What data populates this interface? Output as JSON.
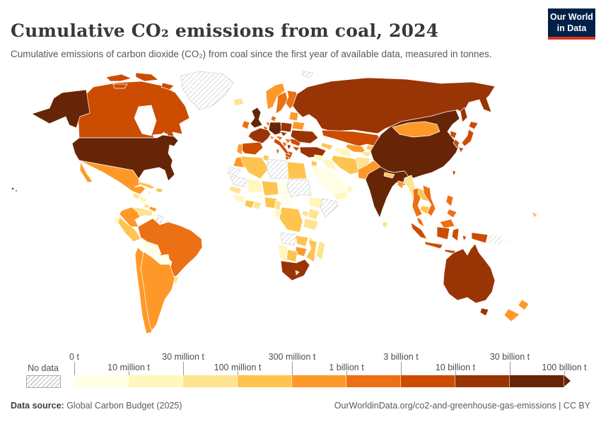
{
  "header": {
    "title": "Cumulative CO₂ emissions from coal, 2024",
    "subtitle": "Cumulative emissions of carbon dioxide (CO₂) from coal since the first year of available data, measured in tonnes.",
    "logo": {
      "line1": "Our World",
      "line2": "in Data",
      "bg_color": "#002147",
      "accent_color": "#d8331f"
    }
  },
  "footer": {
    "source_label": "Data source:",
    "source_value": " Global Carbon Budget (2025)",
    "link_text": "OurWorldinData.org/co2-and-greenhouse-gas-emissions | CC BY"
  },
  "chart_data": {
    "type": "choropleth",
    "title": "Cumulative CO₂ emissions from coal, 2024",
    "unit": "tonnes",
    "year": "2024",
    "legend": {
      "no_data_label": "No data",
      "thresholds": [
        "0 t",
        "10 million t",
        "30 million t",
        "100 million t",
        "300 million t",
        "1 billion t",
        "3 billion t",
        "10 billion t",
        "30 billion t",
        "100 billion t"
      ],
      "bin_colors": [
        "#ffffe5",
        "#fff7bc",
        "#fee391",
        "#fec44f",
        "#fe9929",
        "#ec7014",
        "#cc4c02",
        "#993404",
        "#662506"
      ],
      "no_data_style": "gray-diagonal-hatch"
    },
    "countries": [
      {
        "id": "usa",
        "name": "United States",
        "bin": 8
      },
      {
        "id": "uk",
        "name": "United Kingdom",
        "bin": 8
      },
      {
        "id": "germany",
        "name": "Germany",
        "bin": 8
      },
      {
        "id": "china",
        "name": "China",
        "bin": 8
      },
      {
        "id": "india",
        "name": "India",
        "bin": 8
      },
      {
        "id": "russia",
        "name": "Russia",
        "bin": 7
      },
      {
        "id": "france",
        "name": "France",
        "bin": 7
      },
      {
        "id": "poland",
        "name": "Poland",
        "bin": 7
      },
      {
        "id": "czechia",
        "name": "Czechia",
        "bin": 7
      },
      {
        "id": "ukraine",
        "name": "Ukraine",
        "bin": 7
      },
      {
        "id": "turkey",
        "name": "Turkey",
        "bin": 7
      },
      {
        "id": "australia",
        "name": "Australia",
        "bin": 7
      },
      {
        "id": "south-africa",
        "name": "South Africa",
        "bin": 7
      },
      {
        "id": "serbia",
        "name": "Serbia",
        "bin": 7
      },
      {
        "id": "canada",
        "name": "Canada",
        "bin": 6
      },
      {
        "id": "spain",
        "name": "Spain",
        "bin": 6
      },
      {
        "id": "italy",
        "name": "Italy",
        "bin": 6
      },
      {
        "id": "belgium",
        "name": "Belgium",
        "bin": 6
      },
      {
        "id": "romania",
        "name": "Romania",
        "bin": 6
      },
      {
        "id": "bulgaria",
        "name": "Bulgaria",
        "bin": 6
      },
      {
        "id": "greece",
        "name": "Greece",
        "bin": 6
      },
      {
        "id": "kazakhstan",
        "name": "Kazakhstan",
        "bin": 6
      },
      {
        "id": "japan",
        "name": "Japan",
        "bin": 6
      },
      {
        "id": "north-korea",
        "name": "North Korea",
        "bin": 6
      },
      {
        "id": "south-korea",
        "name": "South Korea",
        "bin": 6
      },
      {
        "id": "taiwan",
        "name": "Taiwan",
        "bin": 6
      },
      {
        "id": "indonesia",
        "name": "Indonesia",
        "bin": 6
      },
      {
        "id": "ireland",
        "name": "Ireland",
        "bin": 5
      },
      {
        "id": "netherlands",
        "name": "Netherlands",
        "bin": 5
      },
      {
        "id": "sweden",
        "name": "Sweden",
        "bin": 5
      },
      {
        "id": "finland",
        "name": "Finland",
        "bin": 5
      },
      {
        "id": "denmark",
        "name": "Denmark",
        "bin": 5
      },
      {
        "id": "austria",
        "name": "Austria",
        "bin": 5
      },
      {
        "id": "hungary",
        "name": "Hungary",
        "bin": 5
      },
      {
        "id": "croatia",
        "name": "Croatia",
        "bin": 5
      },
      {
        "id": "brazil",
        "name": "Brazil",
        "bin": 5
      },
      {
        "id": "vietnam",
        "name": "Vietnam",
        "bin": 5
      },
      {
        "id": "thailand",
        "name": "Thailand",
        "bin": 5
      },
      {
        "id": "malaysia",
        "name": "Malaysia",
        "bin": 5
      },
      {
        "id": "philippines",
        "name": "Philippines",
        "bin": 5
      },
      {
        "id": "mexico",
        "name": "Mexico",
        "bin": 4
      },
      {
        "id": "colombia",
        "name": "Colombia",
        "bin": 4
      },
      {
        "id": "chile",
        "name": "Chile",
        "bin": 4
      },
      {
        "id": "argentina",
        "name": "Argentina",
        "bin": 4
      },
      {
        "id": "portugal",
        "name": "Portugal",
        "bin": 4
      },
      {
        "id": "norway",
        "name": "Norway",
        "bin": 4
      },
      {
        "id": "switzerland",
        "name": "Switzerland",
        "bin": 4
      },
      {
        "id": "belarus",
        "name": "Belarus",
        "bin": 4
      },
      {
        "id": "baltics",
        "name": "Baltic states",
        "bin": 4
      },
      {
        "id": "mongolia",
        "name": "Mongolia",
        "bin": 4
      },
      {
        "id": "uzbekistan",
        "name": "Uzbekistan",
        "bin": 4
      },
      {
        "id": "pakistan",
        "name": "Pakistan",
        "bin": 4
      },
      {
        "id": "bangladesh",
        "name": "Bangladesh",
        "bin": 4
      },
      {
        "id": "morocco",
        "name": "Morocco",
        "bin": 4
      },
      {
        "id": "zimbabwe",
        "name": "Zimbabwe",
        "bin": 4
      },
      {
        "id": "new-zealand",
        "name": "New Zealand",
        "bin": 4
      },
      {
        "id": "panama",
        "name": "Panama",
        "bin": 4
      },
      {
        "id": "peru",
        "name": "Peru",
        "bin": 3
      },
      {
        "id": "algeria",
        "name": "Algeria",
        "bin": 3
      },
      {
        "id": "tunisia",
        "name": "Tunisia",
        "bin": 3
      },
      {
        "id": "egypt",
        "name": "Egypt",
        "bin": 3
      },
      {
        "id": "iran",
        "name": "Iran",
        "bin": 3
      },
      {
        "id": "nepal",
        "name": "Nepal",
        "bin": 3
      },
      {
        "id": "laos",
        "name": "Laos",
        "bin": 3
      },
      {
        "id": "cambodia",
        "name": "Cambodia",
        "bin": 3
      },
      {
        "id": "nigeria",
        "name": "Nigeria",
        "bin": 3
      },
      {
        "id": "niger",
        "name": "Niger",
        "bin": 3
      },
      {
        "id": "drc",
        "name": "Democratic Republic of Congo",
        "bin": 3
      },
      {
        "id": "zambia",
        "name": "Zambia",
        "bin": 3
      },
      {
        "id": "mozambique",
        "name": "Mozambique",
        "bin": 3
      },
      {
        "id": "botswana",
        "name": "Botswana",
        "bin": 3
      },
      {
        "id": "israel",
        "name": "Israel",
        "bin": 3
      },
      {
        "id": "kyrgyzstan",
        "name": "Kyrgyzstan",
        "bin": 3
      },
      {
        "id": "cuba",
        "name": "Cuba",
        "bin": 3
      },
      {
        "id": "dominican-republic",
        "name": "Dominican Republic",
        "bin": 3
      },
      {
        "id": "azerbaijan",
        "name": "Azerbaijan",
        "bin": 3
      },
      {
        "id": "ivory-coast",
        "name": "Cote d'Ivoire",
        "bin": 3
      },
      {
        "id": "new-caledonia",
        "name": "New Caledonia",
        "bin": 3
      },
      {
        "id": "venezuela",
        "name": "Venezuela",
        "bin": 2
      },
      {
        "id": "uruguay",
        "name": "Uruguay",
        "bin": 2
      },
      {
        "id": "guatemala",
        "name": "Guatemala",
        "bin": 2
      },
      {
        "id": "jamaica",
        "name": "Jamaica",
        "bin": 2
      },
      {
        "id": "afghanistan",
        "name": "Afghanistan",
        "bin": 2
      },
      {
        "id": "tajikistan",
        "name": "Tajikistan",
        "bin": 2
      },
      {
        "id": "myanmar",
        "name": "Myanmar",
        "bin": 2
      },
      {
        "id": "sri-lanka",
        "name": "Sri Lanka",
        "bin": 2
      },
      {
        "id": "senegal",
        "name": "Senegal",
        "bin": 2
      },
      {
        "id": "ghana",
        "name": "Ghana",
        "bin": 2
      },
      {
        "id": "kenya",
        "name": "Kenya",
        "bin": 2
      },
      {
        "id": "uganda",
        "name": "Uganda",
        "bin": 2
      },
      {
        "id": "tanzania",
        "name": "Tanzania",
        "bin": 2
      },
      {
        "id": "madagascar",
        "name": "Madagascar",
        "bin": 2
      },
      {
        "id": "cameroon",
        "name": "Cameroon",
        "bin": 2
      },
      {
        "id": "iceland",
        "name": "Iceland",
        "bin": 2
      },
      {
        "id": "malawi",
        "name": "Malawi",
        "bin": 2
      },
      {
        "id": "lesotho",
        "name": "Lesotho",
        "bin": 2
      },
      {
        "id": "costa-rica",
        "name": "Costa Rica",
        "bin": 2
      },
      {
        "id": "ecuador",
        "name": "Ecuador",
        "bin": 1
      },
      {
        "id": "honduras",
        "name": "Honduras",
        "bin": 1
      },
      {
        "id": "ethiopia",
        "name": "Ethiopia",
        "bin": 1
      },
      {
        "id": "mali",
        "name": "Mali",
        "bin": 1
      },
      {
        "id": "namibia",
        "name": "Namibia",
        "bin": 1
      },
      {
        "id": "turkmenistan",
        "name": "Turkmenistan",
        "bin": 1
      },
      {
        "id": "syria",
        "name": "Syria",
        "bin": 1
      },
      {
        "id": "iraq",
        "name": "Iraq",
        "bin": 1
      },
      {
        "id": "yemen",
        "name": "Yemen",
        "bin": 1
      },
      {
        "id": "oman",
        "name": "Oman",
        "bin": 1
      },
      {
        "id": "guinea",
        "name": "Guinea",
        "bin": 1
      },
      {
        "id": "congo",
        "name": "Congo",
        "bin": 1
      },
      {
        "id": "bolivia",
        "name": "Bolivia",
        "bin": 0
      },
      {
        "id": "paraguay",
        "name": "Paraguay",
        "bin": 0
      },
      {
        "id": "saudi-arabia",
        "name": "Saudi Arabia",
        "bin": 0
      },
      {
        "id": "guyana",
        "name": "Guyana",
        "bin": 0
      },
      {
        "id": "chad",
        "name": "Chad",
        "bin": 0
      },
      {
        "id": "central-african-republic",
        "name": "Central African Republic",
        "bin": 0
      },
      {
        "id": "gabon",
        "name": "Gabon",
        "bin": 0
      },
      {
        "id": "greenland",
        "name": "Greenland",
        "bin": "no-data"
      },
      {
        "id": "svalbard",
        "name": "Svalbard",
        "bin": "no-data"
      },
      {
        "id": "libya",
        "name": "Libya",
        "bin": "no-data"
      },
      {
        "id": "sudan",
        "name": "Sudan",
        "bin": "no-data"
      },
      {
        "id": "somalia",
        "name": "Somalia",
        "bin": "no-data"
      },
      {
        "id": "mauritania",
        "name": "Mauritania",
        "bin": "no-data"
      },
      {
        "id": "western-sahara",
        "name": "Western Sahara",
        "bin": "no-data"
      },
      {
        "id": "angola",
        "name": "Angola",
        "bin": "no-data"
      },
      {
        "id": "papua-new-guinea",
        "name": "Papua New Guinea",
        "bin": "no-data"
      },
      {
        "id": "suriname",
        "name": "Suriname",
        "bin": "no-data"
      }
    ]
  }
}
